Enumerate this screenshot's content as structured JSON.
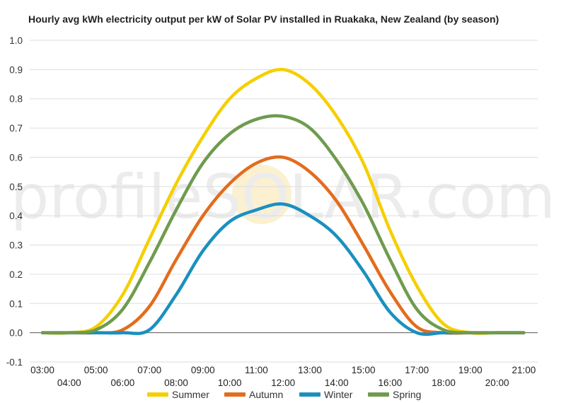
{
  "chart_data": {
    "type": "line",
    "title": "Hourly avg kWh electricity output per kW of Solar PV installed in Ruakaka, New Zealand (by season)",
    "xlabel": "",
    "ylabel": "",
    "ylim": [
      -0.1,
      1.0
    ],
    "yticks": [
      "-0.1",
      "0.0",
      "0.1",
      "0.2",
      "0.3",
      "0.4",
      "0.5",
      "0.6",
      "0.7",
      "0.8",
      "0.9",
      "1.0"
    ],
    "xticks": [
      "03:00",
      "04:00",
      "05:00",
      "06:00",
      "07:00",
      "08:00",
      "09:00",
      "10:00",
      "11:00",
      "12:00",
      "13:00",
      "14:00",
      "15:00",
      "16:00",
      "17:00",
      "18:00",
      "19:00",
      "20:00",
      "21:00"
    ],
    "grid": true,
    "legend_position": "bottom",
    "watermark": "profileSOLAR.com",
    "x": [
      "03:00",
      "04:00",
      "05:00",
      "06:00",
      "07:00",
      "08:00",
      "09:00",
      "10:00",
      "11:00",
      "12:00",
      "13:00",
      "14:00",
      "15:00",
      "16:00",
      "17:00",
      "18:00",
      "19:00",
      "20:00",
      "21:00"
    ],
    "series": [
      {
        "name": "Summer",
        "color": "#f5cf00",
        "values": [
          0.0,
          0.0,
          0.02,
          0.13,
          0.32,
          0.51,
          0.67,
          0.8,
          0.87,
          0.9,
          0.85,
          0.74,
          0.58,
          0.35,
          0.16,
          0.03,
          0.0,
          0.0,
          0.0
        ]
      },
      {
        "name": "Autumn",
        "color": "#e36c1d",
        "values": [
          0.0,
          0.0,
          0.0,
          0.01,
          0.09,
          0.25,
          0.4,
          0.51,
          0.58,
          0.6,
          0.55,
          0.45,
          0.3,
          0.14,
          0.02,
          0.0,
          0.0,
          0.0,
          0.0
        ]
      },
      {
        "name": "Winter",
        "color": "#1a90bf",
        "values": [
          0.0,
          0.0,
          0.0,
          0.0,
          0.01,
          0.13,
          0.28,
          0.38,
          0.42,
          0.44,
          0.4,
          0.33,
          0.21,
          0.07,
          0.0,
          0.0,
          0.0,
          0.0,
          0.0
        ]
      },
      {
        "name": "Spring",
        "color": "#6f9b4e",
        "values": [
          0.0,
          0.0,
          0.01,
          0.08,
          0.24,
          0.42,
          0.58,
          0.68,
          0.73,
          0.74,
          0.7,
          0.59,
          0.44,
          0.25,
          0.08,
          0.01,
          0.0,
          0.0,
          0.0
        ]
      }
    ]
  }
}
